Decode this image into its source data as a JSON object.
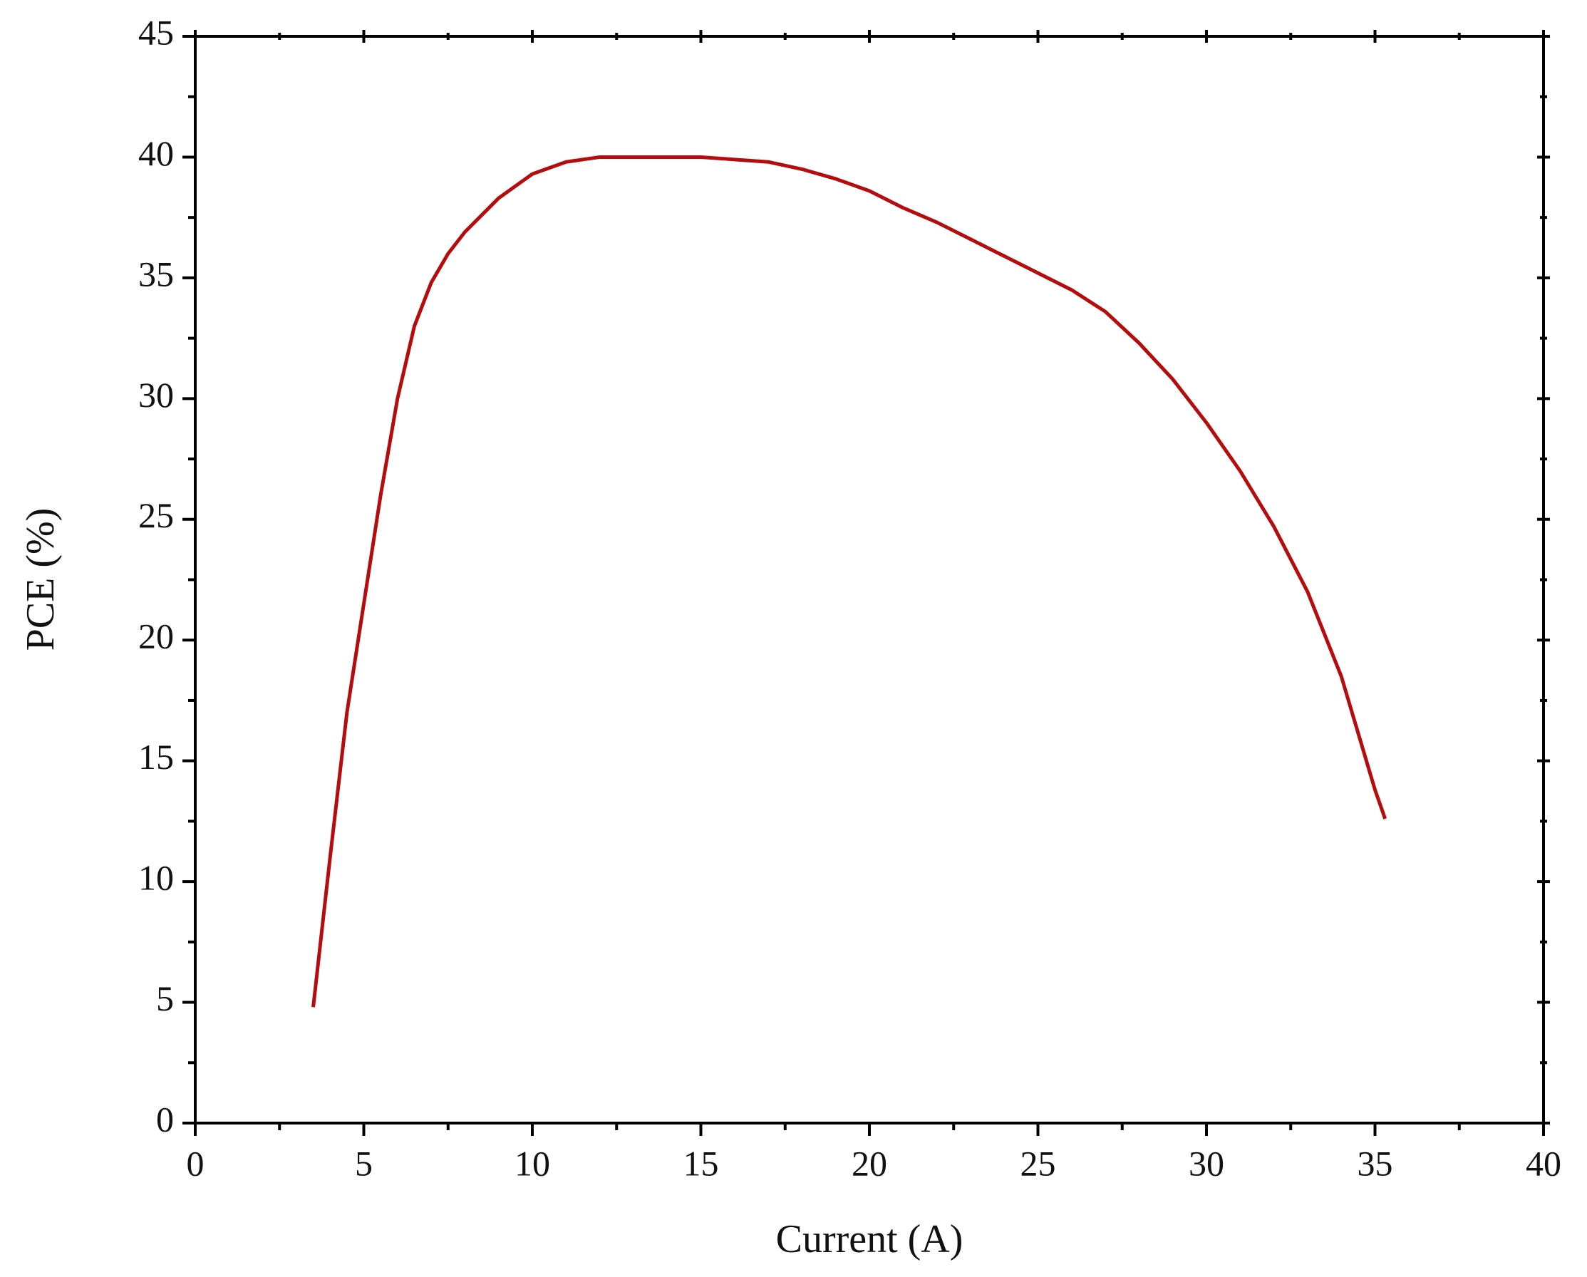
{
  "chart_data": {
    "type": "line",
    "xlabel": "Current (A)",
    "ylabel": "PCE (%)",
    "x": [
      3.5,
      4,
      4.5,
      5,
      5.5,
      6,
      6.5,
      7,
      7.5,
      8,
      9,
      10,
      11,
      12,
      13,
      14,
      15,
      16,
      17,
      18,
      19,
      20,
      21,
      22,
      23,
      24,
      25,
      26,
      27,
      28,
      29,
      30,
      31,
      32,
      33,
      34,
      35,
      35.3
    ],
    "series": [
      {
        "color": "#b50d0d",
        "values": [
          4.8,
          11,
          17,
          21.5,
          26,
          30,
          33,
          34.8,
          36,
          36.9,
          38.3,
          39.3,
          39.8,
          40,
          40,
          40,
          40,
          39.9,
          39.8,
          39.5,
          39.1,
          38.6,
          37.9,
          37.3,
          36.6,
          35.9,
          35.2,
          34.5,
          33.6,
          32.3,
          30.8,
          29,
          27,
          24.7,
          22,
          18.5,
          13.8,
          12.6
        ]
      }
    ],
    "xlim": [
      0,
      40
    ],
    "xticks": [
      0,
      5,
      10,
      15,
      20,
      25,
      30,
      35,
      40
    ],
    "ylim": [
      0,
      45
    ],
    "yticks": [
      0,
      5,
      10,
      15,
      20,
      25,
      30,
      35,
      40,
      45
    ]
  }
}
